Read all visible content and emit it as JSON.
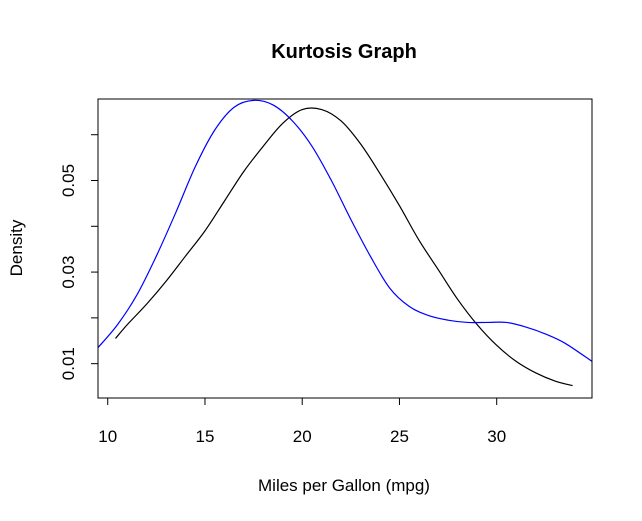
{
  "chart_data": {
    "type": "line",
    "title": "Kurtosis Graph",
    "xlabel": "Miles per Gallon (mpg)",
    "ylabel": "Density",
    "xlim": [
      9.5,
      34.9
    ],
    "ylim": [
      0.0025,
      0.0678
    ],
    "x_ticks": [
      10,
      15,
      20,
      25,
      30
    ],
    "x_tick_labels": [
      "10",
      "15",
      "20",
      "25",
      "30"
    ],
    "y_ticks": [
      0.01,
      0.02,
      0.03,
      0.04,
      0.05,
      0.06
    ],
    "y_tick_labels": [
      "0.01",
      "",
      "0.03",
      "",
      "0.05",
      ""
    ],
    "grid": false,
    "legend": "none",
    "series": [
      {
        "color": "#000000",
        "x": [
          10.4,
          11,
          12,
          13,
          14,
          15,
          16,
          17,
          18,
          19,
          20,
          21,
          22,
          23,
          24,
          25,
          26,
          27,
          28,
          29,
          30,
          31,
          32,
          33,
          33.9
        ],
        "y": [
          0.0155,
          0.0185,
          0.023,
          0.028,
          0.0335,
          0.039,
          0.0455,
          0.052,
          0.0575,
          0.0625,
          0.0655,
          0.0655,
          0.063,
          0.058,
          0.0515,
          0.0445,
          0.037,
          0.0305,
          0.024,
          0.0185,
          0.014,
          0.0105,
          0.008,
          0.0062,
          0.0052
        ]
      },
      {
        "color": "#0000ff",
        "x": [
          9.5,
          10.5,
          11.5,
          12.5,
          13.5,
          14.5,
          15.5,
          16.5,
          17.5,
          18.5,
          19.5,
          20.5,
          21.5,
          22.5,
          23.5,
          24.5,
          25.5,
          26.5,
          27.5,
          28.5,
          29.5,
          30.5,
          31.5,
          32.5,
          33.5,
          34.9
        ],
        "y": [
          0.0135,
          0.0185,
          0.025,
          0.0335,
          0.043,
          0.053,
          0.061,
          0.066,
          0.0675,
          0.0665,
          0.063,
          0.0575,
          0.05,
          0.0415,
          0.0335,
          0.0265,
          0.0225,
          0.0205,
          0.0195,
          0.019,
          0.019,
          0.019,
          0.018,
          0.0165,
          0.0145,
          0.0105
        ]
      }
    ]
  }
}
